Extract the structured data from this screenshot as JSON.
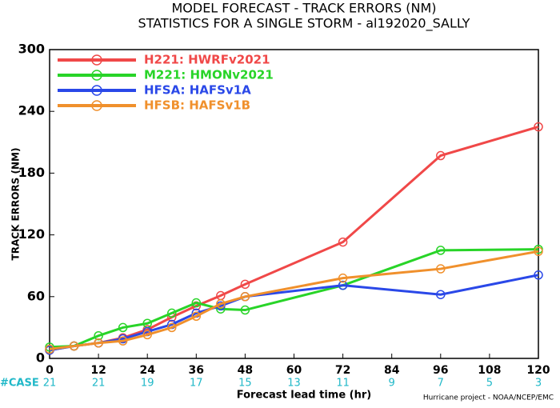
{
  "chart_data": {
    "type": "line",
    "title": "MODEL FORECAST - TRACK ERRORS (NM)",
    "subtitle": "STATISTICS FOR A SINGLE STORM - al192020_SALLY",
    "x_label": "Forecast lead time (hr)",
    "y_label": "TRACK ERRORS (NM)",
    "footer": "Hurricane project - NOAA/NCEP/EMC",
    "case_label": "#CASE",
    "case_x": [
      0,
      12,
      24,
      36,
      48,
      60,
      72,
      84,
      96,
      108,
      120
    ],
    "case_counts": [
      21,
      21,
      19,
      17,
      15,
      13,
      11,
      9,
      7,
      5,
      3
    ],
    "x": [
      0,
      6,
      12,
      18,
      24,
      30,
      36,
      42,
      48,
      72,
      96,
      120
    ],
    "xlim": [
      0,
      120
    ],
    "xticks": [
      0,
      12,
      24,
      36,
      48,
      60,
      72,
      84,
      96,
      108,
      120
    ],
    "ylim": [
      0,
      300
    ],
    "yticks": [
      0,
      60,
      120,
      180,
      240,
      300
    ],
    "series": [
      {
        "name": "H221: HWRFv2021",
        "color": "#f04848",
        "values": [
          8,
          12,
          15,
          20,
          28,
          40,
          51,
          61,
          72,
          113,
          197,
          225
        ]
      },
      {
        "name": "M221: HMONv2021",
        "color": "#28d428",
        "values": [
          11,
          12,
          22,
          30,
          34,
          44,
          54,
          48,
          47,
          71,
          105,
          106
        ]
      },
      {
        "name": "HFSA: HAFSv1A",
        "color": "#2a48e8",
        "values": [
          8,
          12,
          15,
          19,
          26,
          33,
          44,
          51,
          60,
          71,
          62,
          81
        ]
      },
      {
        "name": "HFSB: HAFSv1B",
        "color": "#f0902c",
        "values": [
          9,
          12,
          15,
          17,
          23,
          30,
          41,
          53,
          60,
          78,
          87,
          104
        ]
      }
    ]
  }
}
